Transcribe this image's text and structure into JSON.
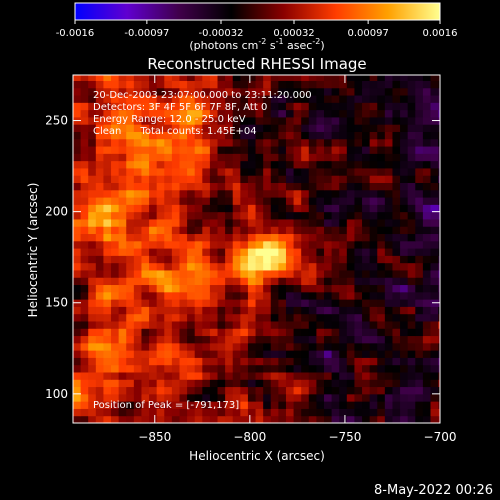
{
  "chart_data": {
    "type": "heatmap",
    "title": "Reconstructed RHESSI Image",
    "xlabel": "Heliocentric X (arcsec)",
    "ylabel": "Heliocentric Y (arcsec)",
    "xlim": [
      -893,
      -700
    ],
    "ylim": [
      84,
      275
    ],
    "x_ticks": [
      -850,
      -800,
      -750,
      -700
    ],
    "y_ticks": [
      100,
      150,
      200,
      250
    ],
    "colorbar": {
      "ticks": [
        -0.0016,
        -0.00097,
        -0.00032,
        0.00032,
        0.00097,
        0.0016
      ],
      "tick_labels": [
        "-0.0016",
        "-0.00097",
        "-0.00032",
        "0.00032",
        "0.00097",
        "0.0016"
      ],
      "unit_text": "(photons cm",
      "unit_exp1": "-2",
      "unit_mid": " s",
      "unit_exp2": "-1",
      "unit_end": " asec",
      "unit_exp3": "-2",
      "unit_close": ")",
      "colors": [
        "#0000ff",
        "#6000d0",
        "#40004a",
        "#000000",
        "#8a0000",
        "#ff3c00",
        "#ffa000",
        "#ffff90"
      ]
    },
    "annotations": [
      "20-Dec-2003 23:07:00.000 to 23:11:20.000",
      "Detectors: 3F 4F 5F 6F 7F 8F, Att 0",
      "Energy Range: 12.0 - 25.0 keV",
      "Clean      Total counts: 1.45E+04"
    ],
    "peak_label": "Position of Peak = [-791,173]",
    "peak": {
      "x": -791,
      "y": 173,
      "value": 0.0016
    },
    "bright_regions": [
      {
        "x": -840,
        "y": 248,
        "value": 0.00075
      },
      {
        "x": -860,
        "y": 195,
        "value": 0.0006
      },
      {
        "x": -830,
        "y": 160,
        "value": 0.00065
      },
      {
        "x": -880,
        "y": 120,
        "value": 0.00045
      }
    ]
  },
  "footer": {
    "timestamp": "8-May-2022 00:26"
  }
}
